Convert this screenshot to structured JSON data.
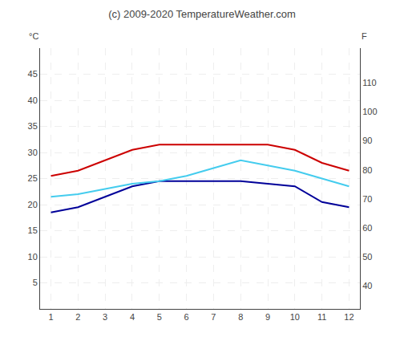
{
  "chart_data": {
    "type": "line",
    "title": "(c) 2009-2020 TemperatureWeather.com",
    "ylabel": "°C",
    "y2label": "F",
    "x": [
      1,
      2,
      3,
      4,
      5,
      6,
      7,
      8,
      9,
      10,
      11,
      12
    ],
    "series": [
      {
        "color": "#cc0000",
        "values": [
          25.5,
          26.5,
          28.5,
          30.5,
          31.5,
          31.5,
          31.5,
          31.5,
          31.5,
          30.5,
          28.0,
          26.5
        ]
      },
      {
        "color": "#000099",
        "values": [
          18.5,
          19.5,
          21.5,
          23.5,
          24.5,
          24.5,
          24.5,
          24.5,
          24.0,
          23.5,
          20.5,
          19.5
        ]
      },
      {
        "color": "#44ccee",
        "values": [
          21.5,
          22.0,
          23.0,
          24.0,
          24.5,
          25.5,
          27.0,
          28.5,
          27.5,
          26.5,
          25.0,
          23.5
        ]
      }
    ],
    "xlim": [
      0.6,
      12.4
    ],
    "xticks": [
      1,
      2,
      3,
      4,
      5,
      6,
      7,
      8,
      9,
      10,
      11,
      12
    ],
    "ylim": [
      0,
      50
    ],
    "yticks": [
      5,
      10,
      15,
      20,
      25,
      30,
      35,
      40,
      45
    ],
    "y2lim": [
      32,
      122
    ],
    "y2ticks": [
      40,
      50,
      60,
      70,
      80,
      90,
      100,
      110
    ],
    "grid": true
  }
}
